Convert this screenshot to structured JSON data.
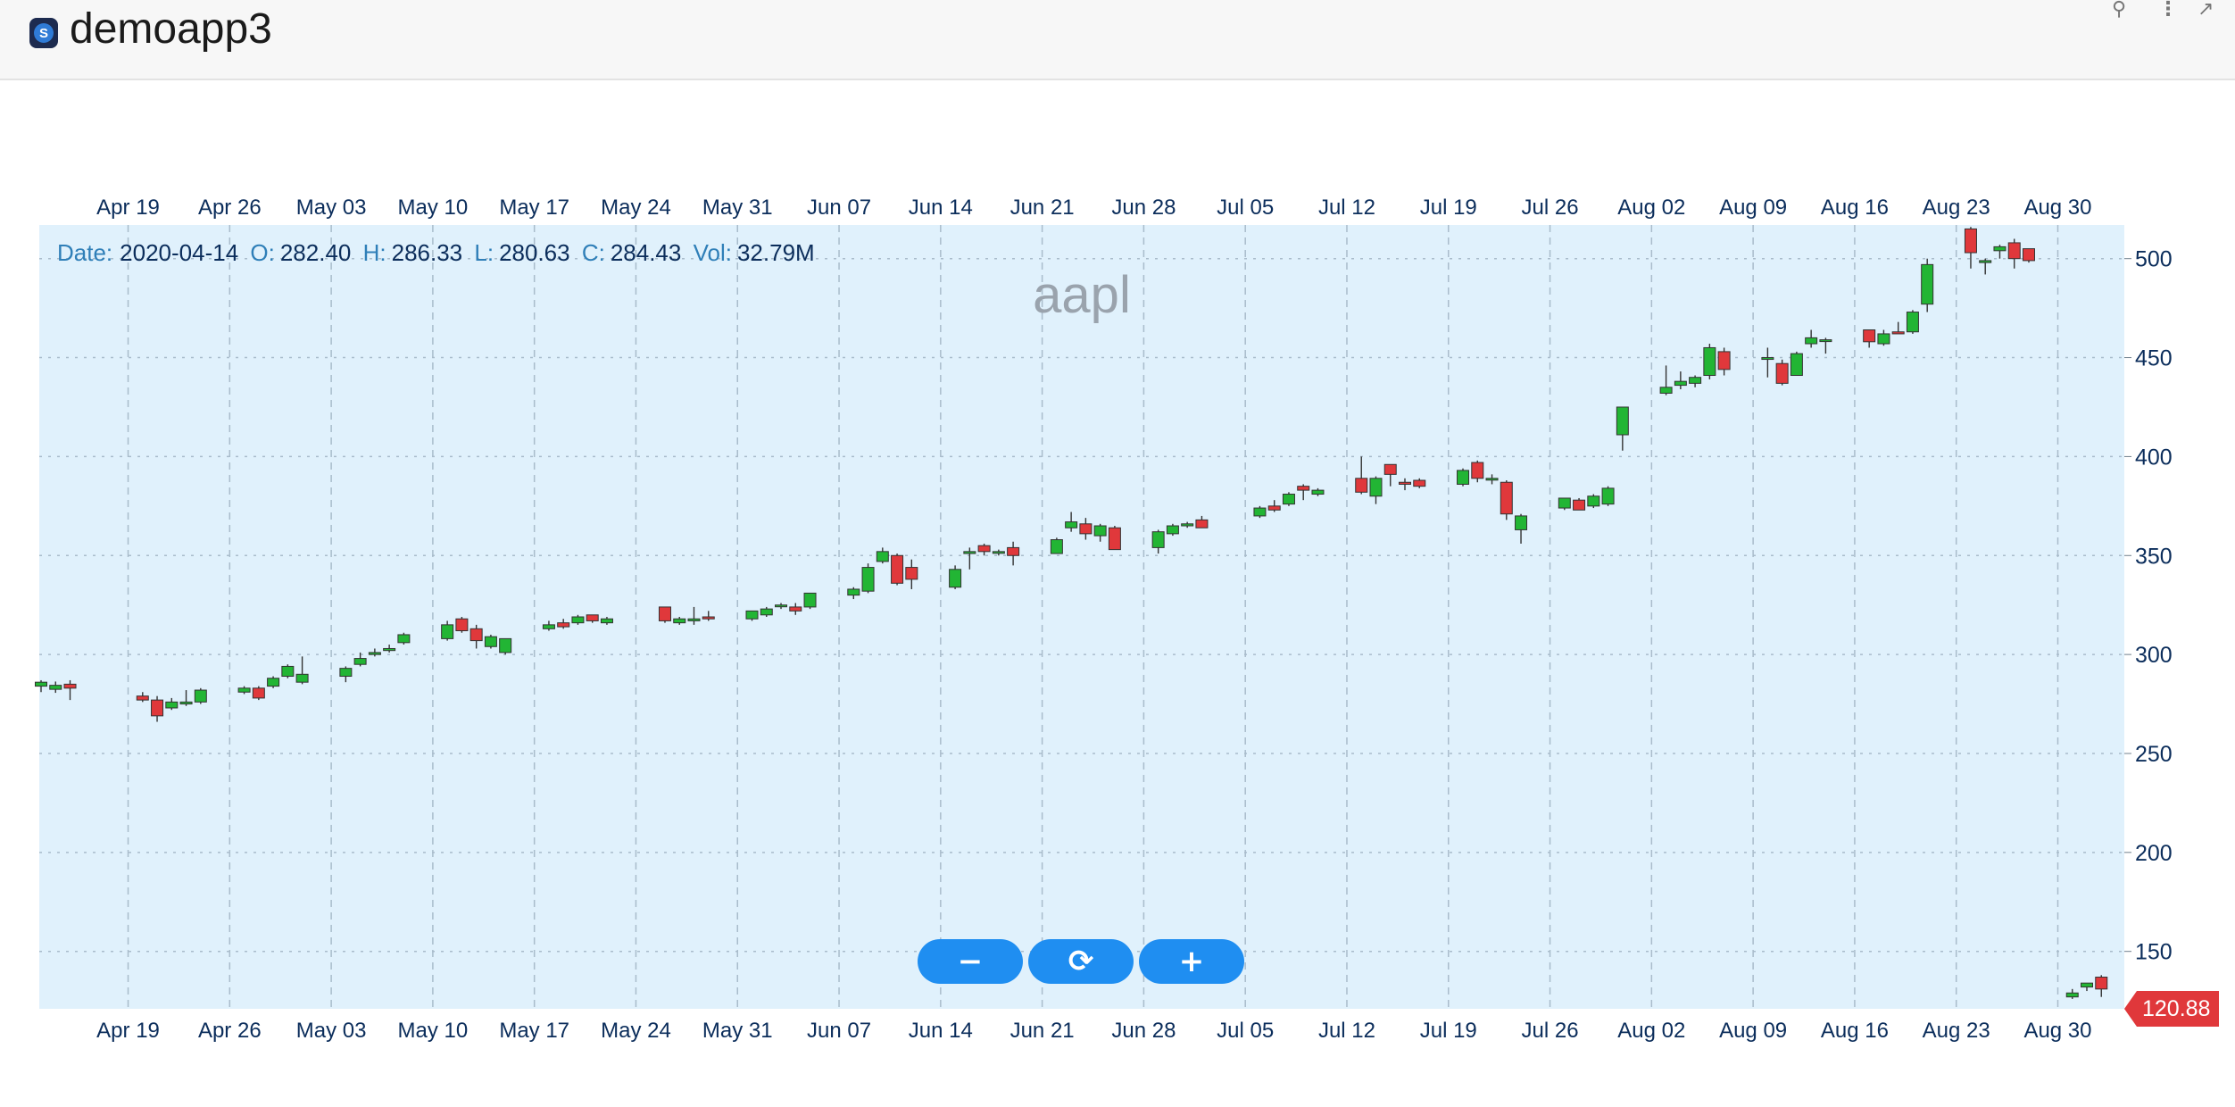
{
  "app": {
    "title": "demoapp3",
    "logo_letter": "S"
  },
  "header_icons": [
    "pin-icon",
    "more-vertical-icon",
    "open-external-icon"
  ],
  "info_bar": {
    "date_label": "Date:",
    "date": "2020-04-14",
    "open_label": "O:",
    "open": "282.40",
    "high_label": "H:",
    "high": "286.33",
    "low_label": "L:",
    "low": "280.63",
    "close_label": "C:",
    "close": "284.43",
    "vol_label": "Vol:",
    "vol": "32.79M"
  },
  "zoom_controls": {
    "zoom_out": "−",
    "reset": "⟳",
    "zoom_in": "+"
  },
  "last_price": "120.88",
  "colors": {
    "up": "#22b534",
    "down": "#e0383b",
    "plot_bg": "#e0f1fc",
    "axis_text": "#0b2d5b",
    "watermark": "#9aa3ad"
  },
  "chart_data": {
    "type": "candlestick",
    "watermark": "aapl",
    "x_ticks": [
      "Apr 19",
      "Apr 26",
      "May 03",
      "May 10",
      "May 17",
      "May 24",
      "May 31",
      "Jun 07",
      "Jun 14",
      "Jun 21",
      "Jun 28",
      "Jul 05",
      "Jul 12",
      "Jul 19",
      "Jul 26",
      "Aug 02",
      "Aug 09",
      "Aug 16",
      "Aug 23",
      "Aug 30"
    ],
    "x_tick_dates": [
      "2020-04-19",
      "2020-04-26",
      "2020-05-03",
      "2020-05-10",
      "2020-05-17",
      "2020-05-24",
      "2020-05-31",
      "2020-06-07",
      "2020-06-14",
      "2020-06-21",
      "2020-06-28",
      "2020-07-05",
      "2020-07-12",
      "2020-07-19",
      "2020-07-26",
      "2020-08-02",
      "2020-08-09",
      "2020-08-16",
      "2020-08-23",
      "2020-08-30"
    ],
    "y_ticks": [
      150,
      200,
      250,
      300,
      350,
      400,
      450,
      500
    ],
    "ylim": [
      121,
      517
    ],
    "xlim": [
      "2020-04-13",
      "2020-09-01"
    ],
    "grid": true,
    "candles": [
      {
        "d": "2020-04-13",
        "o": 284,
        "h": 287,
        "l": 281,
        "c": 286
      },
      {
        "d": "2020-04-14",
        "o": 282.4,
        "h": 286.33,
        "l": 280.63,
        "c": 284.43
      },
      {
        "d": "2020-04-15",
        "o": 285,
        "h": 287,
        "l": 277,
        "c": 283
      },
      {
        "d": "2020-04-20",
        "o": 279,
        "h": 281,
        "l": 276,
        "c": 277
      },
      {
        "d": "2020-04-21",
        "o": 277,
        "h": 279,
        "l": 266,
        "c": 269
      },
      {
        "d": "2020-04-22",
        "o": 273,
        "h": 278,
        "l": 272,
        "c": 276
      },
      {
        "d": "2020-04-23",
        "o": 275,
        "h": 282,
        "l": 274,
        "c": 276
      },
      {
        "d": "2020-04-24",
        "o": 276,
        "h": 283,
        "l": 275,
        "c": 282
      },
      {
        "d": "2020-04-27",
        "o": 281,
        "h": 284,
        "l": 280,
        "c": 283
      },
      {
        "d": "2020-04-28",
        "o": 283,
        "h": 284,
        "l": 277,
        "c": 278
      },
      {
        "d": "2020-04-29",
        "o": 284,
        "h": 289,
        "l": 283,
        "c": 288
      },
      {
        "d": "2020-04-30",
        "o": 289,
        "h": 295,
        "l": 288,
        "c": 294
      },
      {
        "d": "2020-05-01",
        "o": 286,
        "h": 299,
        "l": 285,
        "c": 290
      },
      {
        "d": "2020-05-04",
        "o": 289,
        "h": 294,
        "l": 286,
        "c": 293
      },
      {
        "d": "2020-05-05",
        "o": 295,
        "h": 301,
        "l": 294,
        "c": 298
      },
      {
        "d": "2020-05-06",
        "o": 300,
        "h": 303,
        "l": 299,
        "c": 301
      },
      {
        "d": "2020-05-07",
        "o": 302,
        "h": 305,
        "l": 301,
        "c": 303
      },
      {
        "d": "2020-05-08",
        "o": 306,
        "h": 311,
        "l": 305,
        "c": 310
      },
      {
        "d": "2020-05-11",
        "o": 308,
        "h": 317,
        "l": 307,
        "c": 315
      },
      {
        "d": "2020-05-12",
        "o": 318,
        "h": 319,
        "l": 311,
        "c": 312
      },
      {
        "d": "2020-05-13",
        "o": 313,
        "h": 315,
        "l": 303,
        "c": 307
      },
      {
        "d": "2020-05-14",
        "o": 304,
        "h": 310,
        "l": 303,
        "c": 309
      },
      {
        "d": "2020-05-15",
        "o": 301,
        "h": 308,
        "l": 300,
        "c": 308
      },
      {
        "d": "2020-05-18",
        "o": 313,
        "h": 317,
        "l": 312,
        "c": 315
      },
      {
        "d": "2020-05-19",
        "o": 316,
        "h": 318,
        "l": 313,
        "c": 314
      },
      {
        "d": "2020-05-20",
        "o": 316,
        "h": 320,
        "l": 315,
        "c": 319
      },
      {
        "d": "2020-05-21",
        "o": 320,
        "h": 320,
        "l": 316,
        "c": 317
      },
      {
        "d": "2020-05-22",
        "o": 316,
        "h": 319,
        "l": 315,
        "c": 318
      },
      {
        "d": "2020-05-26",
        "o": 324,
        "h": 324,
        "l": 316,
        "c": 317
      },
      {
        "d": "2020-05-27",
        "o": 316,
        "h": 319,
        "l": 315,
        "c": 318
      },
      {
        "d": "2020-05-28",
        "o": 317,
        "h": 324,
        "l": 315,
        "c": 318
      },
      {
        "d": "2020-05-29",
        "o": 319,
        "h": 322,
        "l": 317,
        "c": 318
      },
      {
        "d": "2020-06-01",
        "o": 318,
        "h": 322,
        "l": 317,
        "c": 322
      },
      {
        "d": "2020-06-02",
        "o": 320,
        "h": 324,
        "l": 319,
        "c": 323
      },
      {
        "d": "2020-06-03",
        "o": 325,
        "h": 326,
        "l": 323,
        "c": 325
      },
      {
        "d": "2020-06-04",
        "o": 324,
        "h": 326,
        "l": 320,
        "c": 322
      },
      {
        "d": "2020-06-05",
        "o": 324,
        "h": 331,
        "l": 323,
        "c": 331
      },
      {
        "d": "2020-06-08",
        "o": 330,
        "h": 334,
        "l": 328,
        "c": 333
      },
      {
        "d": "2020-06-09",
        "o": 332,
        "h": 346,
        "l": 331,
        "c": 344
      },
      {
        "d": "2020-06-10",
        "o": 347,
        "h": 354,
        "l": 346,
        "c": 352
      },
      {
        "d": "2020-06-11",
        "o": 350,
        "h": 351,
        "l": 335,
        "c": 336
      },
      {
        "d": "2020-06-12",
        "o": 344,
        "h": 348,
        "l": 333,
        "c": 338
      },
      {
        "d": "2020-06-15",
        "o": 334,
        "h": 345,
        "l": 333,
        "c": 343
      },
      {
        "d": "2020-06-16",
        "o": 351,
        "h": 354,
        "l": 343,
        "c": 352
      },
      {
        "d": "2020-06-17",
        "o": 355,
        "h": 356,
        "l": 350,
        "c": 352
      },
      {
        "d": "2020-06-18",
        "o": 352,
        "h": 353,
        "l": 350,
        "c": 352
      },
      {
        "d": "2020-06-19",
        "o": 354,
        "h": 357,
        "l": 345,
        "c": 350
      },
      {
        "d": "2020-06-22",
        "o": 351,
        "h": 359,
        "l": 351,
        "c": 358
      },
      {
        "d": "2020-06-23",
        "o": 364,
        "h": 372,
        "l": 362,
        "c": 367
      },
      {
        "d": "2020-06-24",
        "o": 366,
        "h": 369,
        "l": 358,
        "c": 361
      },
      {
        "d": "2020-06-25",
        "o": 360,
        "h": 366,
        "l": 357,
        "c": 365
      },
      {
        "d": "2020-06-26",
        "o": 364,
        "h": 365,
        "l": 353,
        "c": 353
      },
      {
        "d": "2020-06-29",
        "o": 354,
        "h": 363,
        "l": 351,
        "c": 362
      },
      {
        "d": "2020-06-30",
        "o": 361,
        "h": 366,
        "l": 360,
        "c": 365
      },
      {
        "d": "2020-07-01",
        "o": 365,
        "h": 367,
        "l": 364,
        "c": 366
      },
      {
        "d": "2020-07-02",
        "o": 368,
        "h": 370,
        "l": 364,
        "c": 364
      },
      {
        "d": "2020-07-06",
        "o": 370,
        "h": 375,
        "l": 369,
        "c": 374
      },
      {
        "d": "2020-07-07",
        "o": 375,
        "h": 378,
        "l": 372,
        "c": 373
      },
      {
        "d": "2020-07-08",
        "o": 376,
        "h": 382,
        "l": 375,
        "c": 381
      },
      {
        "d": "2020-07-09",
        "o": 385,
        "h": 386,
        "l": 378,
        "c": 383
      },
      {
        "d": "2020-07-10",
        "o": 381,
        "h": 384,
        "l": 380,
        "c": 383
      },
      {
        "d": "2020-07-13",
        "o": 389,
        "h": 400,
        "l": 381,
        "c": 382
      },
      {
        "d": "2020-07-14",
        "o": 380,
        "h": 390,
        "l": 376,
        "c": 389
      },
      {
        "d": "2020-07-15",
        "o": 396,
        "h": 396,
        "l": 385,
        "c": 391
      },
      {
        "d": "2020-07-16",
        "o": 387,
        "h": 389,
        "l": 383,
        "c": 386
      },
      {
        "d": "2020-07-17",
        "o": 388,
        "h": 389,
        "l": 384,
        "c": 385
      },
      {
        "d": "2020-07-20",
        "o": 386,
        "h": 394,
        "l": 385,
        "c": 393
      },
      {
        "d": "2020-07-21",
        "o": 397,
        "h": 398,
        "l": 387,
        "c": 389
      },
      {
        "d": "2020-07-22",
        "o": 389,
        "h": 391,
        "l": 386,
        "c": 389
      },
      {
        "d": "2020-07-23",
        "o": 387,
        "h": 388,
        "l": 368,
        "c": 371
      },
      {
        "d": "2020-07-24",
        "o": 363,
        "h": 371,
        "l": 356,
        "c": 370
      },
      {
        "d": "2020-07-27",
        "o": 374,
        "h": 379,
        "l": 373,
        "c": 379
      },
      {
        "d": "2020-07-28",
        "o": 378,
        "h": 379,
        "l": 373,
        "c": 373
      },
      {
        "d": "2020-07-29",
        "o": 375,
        "h": 381,
        "l": 374,
        "c": 380
      },
      {
        "d": "2020-07-30",
        "o": 376,
        "h": 385,
        "l": 375,
        "c": 384
      },
      {
        "d": "2020-07-31",
        "o": 411,
        "h": 425,
        "l": 403,
        "c": 425
      },
      {
        "d": "2020-08-03",
        "o": 432,
        "h": 446,
        "l": 431,
        "c": 435
      },
      {
        "d": "2020-08-04",
        "o": 436,
        "h": 443,
        "l": 434,
        "c": 438
      },
      {
        "d": "2020-08-05",
        "o": 437,
        "h": 441,
        "l": 435,
        "c": 440
      },
      {
        "d": "2020-08-06",
        "o": 441,
        "h": 457,
        "l": 439,
        "c": 455
      },
      {
        "d": "2020-08-07",
        "o": 453,
        "h": 455,
        "l": 441,
        "c": 444
      },
      {
        "d": "2020-08-10",
        "o": 450,
        "h": 455,
        "l": 440,
        "c": 450
      },
      {
        "d": "2020-08-11",
        "o": 447,
        "h": 449,
        "l": 436,
        "c": 437
      },
      {
        "d": "2020-08-12",
        "o": 441,
        "h": 453,
        "l": 441,
        "c": 452
      },
      {
        "d": "2020-08-13",
        "o": 457,
        "h": 464,
        "l": 455,
        "c": 460
      },
      {
        "d": "2020-08-14",
        "o": 459,
        "h": 460,
        "l": 452,
        "c": 459
      },
      {
        "d": "2020-08-17",
        "o": 464,
        "h": 464,
        "l": 455,
        "c": 458
      },
      {
        "d": "2020-08-18",
        "o": 457,
        "h": 464,
        "l": 456,
        "c": 462
      },
      {
        "d": "2020-08-19",
        "o": 463,
        "h": 468,
        "l": 462,
        "c": 462
      },
      {
        "d": "2020-08-20",
        "o": 463,
        "h": 474,
        "l": 462,
        "c": 473
      },
      {
        "d": "2020-08-21",
        "o": 477,
        "h": 500,
        "l": 473,
        "c": 497
      },
      {
        "d": "2020-08-24",
        "o": 515,
        "h": 516,
        "l": 495,
        "c": 503
      },
      {
        "d": "2020-08-25",
        "o": 498,
        "h": 500,
        "l": 492,
        "c": 499
      },
      {
        "d": "2020-08-26",
        "o": 504,
        "h": 507,
        "l": 500,
        "c": 506
      },
      {
        "d": "2020-08-27",
        "o": 508,
        "h": 510,
        "l": 495,
        "c": 500
      },
      {
        "d": "2020-08-28",
        "o": 505,
        "h": 505,
        "l": 498,
        "c": 499
      },
      {
        "d": "2020-08-31",
        "o": 127,
        "h": 131,
        "l": 126,
        "c": 129
      },
      {
        "d": "2020-09-01",
        "o": 132,
        "h": 134,
        "l": 130,
        "c": 134
      },
      {
        "d": "2020-09-02",
        "o": 137,
        "h": 138,
        "l": 127,
        "c": 131
      }
    ]
  }
}
